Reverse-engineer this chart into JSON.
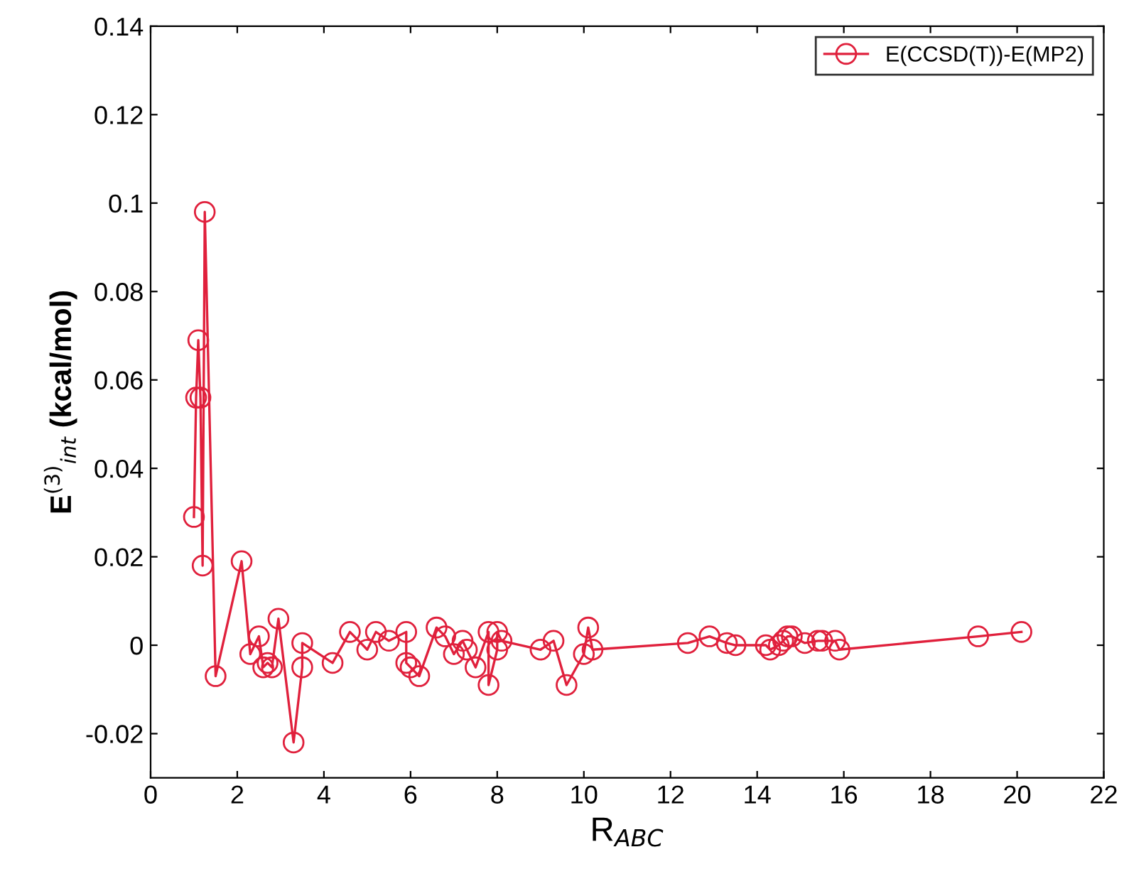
{
  "chart_data": {
    "type": "line",
    "xlabel": "R$_{ABC}$",
    "ylabel": "E$^{(3)}$$_{int}$ (kcal/mol)",
    "xlim": [
      0,
      22
    ],
    "xticks": [
      0,
      2,
      4,
      6,
      8,
      10,
      12,
      14,
      16,
      18,
      20,
      22
    ],
    "ylim": [
      -0.03,
      0.14
    ],
    "yticks": [
      {
        "value": -0.02,
        "label": "-0.02"
      },
      0,
      0.02,
      0.04,
      0.06,
      0.08,
      0.1,
      0.12,
      0.14
    ],
    "grid": false,
    "legend": "top right",
    "marker": "circle",
    "line_style": "solid",
    "series": [
      {
        "name": "E(CCSD(T))-E(MP2)",
        "color": "#e0203c",
        "x": [
          1.0,
          1.05,
          1.1,
          1.15,
          1.2,
          1.25,
          1.5,
          2.1,
          2.3,
          2.5,
          2.6,
          2.7,
          2.8,
          2.95,
          3.3,
          3.5,
          3.5,
          4.2,
          4.6,
          5.0,
          5.2,
          5.5,
          5.9,
          5.9,
          6.0,
          6.2,
          6.6,
          6.8,
          7.0,
          7.2,
          7.3,
          7.5,
          7.8,
          7.8,
          8.0,
          8.0,
          8.1,
          9.0,
          9.3,
          9.6,
          10.0,
          10.1,
          10.2,
          12.4,
          12.9,
          13.3,
          13.5,
          14.2,
          14.3,
          14.5,
          14.6,
          14.7,
          14.8,
          15.1,
          15.4,
          15.5,
          15.8,
          15.9,
          19.1,
          20.1
        ],
        "values": [
          0.029,
          0.056,
          0.069,
          0.056,
          0.018,
          0.098,
          -0.007,
          0.019,
          -0.002,
          0.002,
          -0.005,
          -0.004,
          -0.005,
          0.006,
          -0.022,
          -0.005,
          0.0005,
          -0.004,
          0.003,
          -0.001,
          0.003,
          0.001,
          0.003,
          -0.004,
          -0.005,
          -0.007,
          0.004,
          0.002,
          -0.002,
          0.001,
          -0.001,
          -0.005,
          0.003,
          -0.009,
          -0.001,
          0.003,
          0.001,
          -0.001,
          0.001,
          -0.009,
          -0.002,
          0.004,
          -0.001,
          0.0005,
          0.002,
          0.0005,
          0,
          0,
          -0.001,
          0,
          0.001,
          0.002,
          0.002,
          0.0005,
          0.001,
          0.001,
          0.001,
          -0.001,
          0.002,
          0.003
        ]
      }
    ]
  }
}
